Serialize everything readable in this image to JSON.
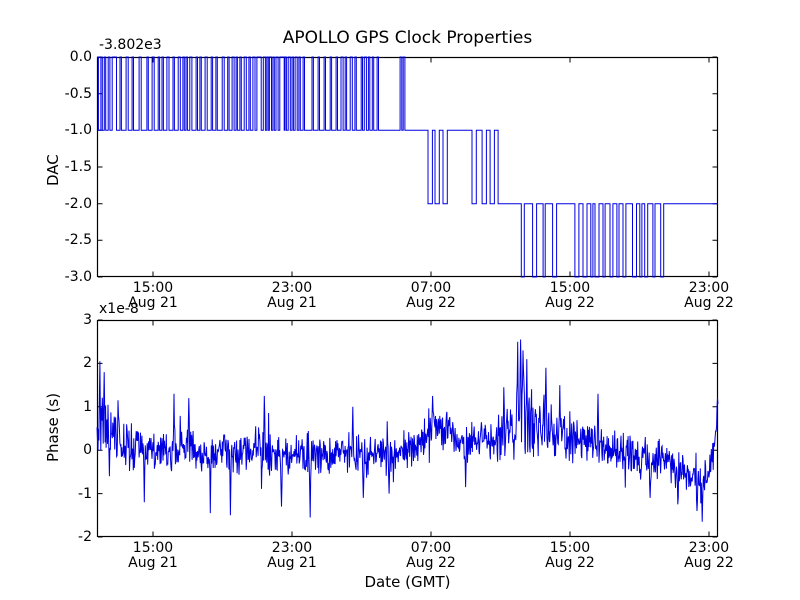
{
  "figure": {
    "title": "APOLLO GPS Clock Properties",
    "xlabel": "Date (GMT)"
  },
  "colors": {
    "line": "#0000e0",
    "axis": "#000000",
    "background": "#ffffff",
    "text": "#000000"
  },
  "chart_data": [
    {
      "type": "line",
      "subplot": "top",
      "ylabel": "DAC",
      "offset_text": "-3.802e3",
      "ylim": [
        -3.0,
        0.0
      ],
      "x_domain_hours": [
        11.777,
        47.518
      ],
      "grid": false,
      "legend": "none",
      "y_ticks": [
        {
          "value": 0.0,
          "label": "0.0"
        },
        {
          "value": -0.5,
          "label": "-0.5"
        },
        {
          "value": -1.0,
          "label": "-1.0"
        },
        {
          "value": -1.5,
          "label": "-1.5"
        },
        {
          "value": -2.0,
          "label": "-2.0"
        },
        {
          "value": -2.5,
          "label": "-2.5"
        },
        {
          "value": -3.0,
          "label": "-3.0"
        }
      ],
      "x_ticks": [
        {
          "hour": 15,
          "time": "15:00",
          "date": "Aug 21"
        },
        {
          "hour": 23,
          "time": "23:00",
          "date": "Aug 21"
        },
        {
          "hour": 31,
          "time": "07:00",
          "date": "Aug 22"
        },
        {
          "hour": 39,
          "time": "15:00",
          "date": "Aug 22"
        },
        {
          "hour": 47,
          "time": "23:00",
          "date": "Aug 22"
        }
      ],
      "step_events": [
        [
          11.78,
          0
        ],
        [
          11.86,
          -1
        ],
        [
          12.0,
          0
        ],
        [
          12.08,
          -1
        ],
        [
          12.2,
          0
        ],
        [
          12.28,
          -1
        ],
        [
          12.42,
          0
        ],
        [
          12.52,
          -1
        ],
        [
          12.65,
          0
        ],
        [
          12.9,
          -1
        ],
        [
          13.1,
          0
        ],
        [
          13.18,
          -1
        ],
        [
          13.45,
          0
        ],
        [
          13.57,
          -1
        ],
        [
          13.8,
          0
        ],
        [
          13.88,
          -1
        ],
        [
          14.2,
          0
        ],
        [
          14.32,
          -1
        ],
        [
          14.65,
          0
        ],
        [
          14.73,
          -1
        ],
        [
          14.95,
          0
        ],
        [
          15.07,
          -1
        ],
        [
          15.3,
          0
        ],
        [
          15.38,
          -1
        ],
        [
          15.52,
          0
        ],
        [
          15.6,
          -1
        ],
        [
          15.8,
          0
        ],
        [
          15.92,
          -1
        ],
        [
          16.15,
          0
        ],
        [
          16.23,
          -1
        ],
        [
          16.45,
          0
        ],
        [
          16.57,
          -1
        ],
        [
          16.72,
          0
        ],
        [
          16.8,
          -1
        ],
        [
          16.9,
          0
        ],
        [
          16.98,
          -1
        ],
        [
          17.12,
          0
        ],
        [
          17.24,
          -1
        ],
        [
          17.48,
          0
        ],
        [
          17.56,
          -1
        ],
        [
          17.7,
          0
        ],
        [
          17.78,
          -1
        ],
        [
          18.0,
          0
        ],
        [
          18.12,
          -1
        ],
        [
          18.35,
          0
        ],
        [
          18.43,
          -1
        ],
        [
          18.62,
          0
        ],
        [
          18.7,
          -1
        ],
        [
          18.98,
          0
        ],
        [
          19.1,
          -1
        ],
        [
          19.3,
          0
        ],
        [
          19.38,
          -1
        ],
        [
          19.55,
          0
        ],
        [
          19.67,
          -1
        ],
        [
          19.78,
          0
        ],
        [
          19.86,
          -1
        ],
        [
          20.0,
          0
        ],
        [
          20.08,
          -1
        ],
        [
          20.25,
          0
        ],
        [
          20.37,
          -1
        ],
        [
          20.52,
          0
        ],
        [
          20.6,
          -1
        ],
        [
          20.75,
          0
        ],
        [
          20.87,
          -1
        ],
        [
          20.98,
          0
        ],
        [
          21.23,
          -1
        ],
        [
          21.35,
          0
        ],
        [
          21.47,
          -1
        ],
        [
          21.55,
          0
        ],
        [
          21.63,
          -1
        ],
        [
          21.7,
          0
        ],
        [
          21.82,
          -1
        ],
        [
          21.9,
          0
        ],
        [
          21.98,
          -1
        ],
        [
          22.08,
          0
        ],
        [
          22.2,
          -1
        ],
        [
          22.3,
          0
        ],
        [
          22.55,
          -1
        ],
        [
          22.6,
          0
        ],
        [
          22.68,
          -1
        ],
        [
          22.78,
          0
        ],
        [
          22.9,
          -1
        ],
        [
          23.0,
          0
        ],
        [
          23.08,
          -1
        ],
        [
          23.18,
          0
        ],
        [
          23.3,
          -1
        ],
        [
          23.4,
          0
        ],
        [
          23.48,
          -1
        ],
        [
          23.64,
          0
        ],
        [
          23.72,
          -1
        ],
        [
          24.15,
          0
        ],
        [
          24.23,
          -1
        ],
        [
          24.5,
          0
        ],
        [
          24.58,
          -1
        ],
        [
          24.85,
          0
        ],
        [
          24.93,
          -1
        ],
        [
          25.2,
          0
        ],
        [
          25.28,
          -1
        ],
        [
          25.54,
          0
        ],
        [
          25.62,
          -1
        ],
        [
          25.82,
          0
        ],
        [
          25.94,
          -1
        ],
        [
          26.06,
          0
        ],
        [
          26.14,
          -1
        ],
        [
          26.35,
          0
        ],
        [
          26.47,
          -1
        ],
        [
          26.62,
          0
        ],
        [
          26.7,
          -1
        ],
        [
          26.98,
          0
        ],
        [
          27.06,
          -1
        ],
        [
          27.16,
          0
        ],
        [
          27.28,
          -1
        ],
        [
          27.4,
          0
        ],
        [
          27.48,
          -1
        ],
        [
          27.62,
          0
        ],
        [
          27.7,
          -1
        ],
        [
          27.9,
          0
        ],
        [
          27.98,
          -1
        ],
        [
          29.22,
          0
        ],
        [
          29.32,
          -1
        ],
        [
          29.4,
          0
        ],
        [
          29.5,
          -1
        ],
        [
          30.83,
          -2
        ],
        [
          31.08,
          -1
        ],
        [
          31.23,
          -2
        ],
        [
          31.48,
          -1
        ],
        [
          31.69,
          -2
        ],
        [
          31.94,
          -1
        ],
        [
          33.36,
          -2
        ],
        [
          33.61,
          -1
        ],
        [
          33.94,
          -2
        ],
        [
          34.19,
          -1
        ],
        [
          34.4,
          -2
        ],
        [
          34.65,
          -1
        ],
        [
          34.86,
          -2
        ],
        [
          36.2,
          -3
        ],
        [
          36.37,
          -2
        ],
        [
          36.85,
          -3
        ],
        [
          37.08,
          -2
        ],
        [
          37.45,
          -3
        ],
        [
          37.57,
          -2
        ],
        [
          38.0,
          -3
        ],
        [
          38.23,
          -2
        ],
        [
          39.28,
          -3
        ],
        [
          39.51,
          -2
        ],
        [
          39.75,
          -3
        ],
        [
          39.98,
          -2
        ],
        [
          40.2,
          -3
        ],
        [
          40.32,
          -2
        ],
        [
          40.44,
          -3
        ],
        [
          40.67,
          -2
        ],
        [
          40.9,
          -3
        ],
        [
          41.02,
          -2
        ],
        [
          41.3,
          -3
        ],
        [
          41.47,
          -2
        ],
        [
          41.7,
          -3
        ],
        [
          41.82,
          -2
        ],
        [
          42.05,
          -3
        ],
        [
          42.22,
          -2
        ],
        [
          42.6,
          -3
        ],
        [
          42.83,
          -2
        ],
        [
          43.02,
          -3
        ],
        [
          43.14,
          -2
        ],
        [
          43.3,
          -3
        ],
        [
          43.47,
          -2
        ],
        [
          43.77,
          -3
        ],
        [
          43.89,
          -2
        ],
        [
          44.22,
          -3
        ],
        [
          44.39,
          -2
        ]
      ]
    },
    {
      "type": "line",
      "subplot": "bottom",
      "ylabel": "Phase (s)",
      "multiplier_text": "x1e-8",
      "xlabel": "Date (GMT)",
      "ylim": [
        -2,
        3
      ],
      "x_domain_hours": [
        11.777,
        47.518
      ],
      "grid": false,
      "legend": "none",
      "y_ticks": [
        {
          "value": 3,
          "label": "3"
        },
        {
          "value": 2,
          "label": "2"
        },
        {
          "value": 1,
          "label": "1"
        },
        {
          "value": 0,
          "label": "0"
        },
        {
          "value": -1,
          "label": "-1"
        },
        {
          "value": -2,
          "label": "-2"
        }
      ],
      "x_ticks": [
        {
          "hour": 15,
          "time": "15:00",
          "date": "Aug 21"
        },
        {
          "hour": 23,
          "time": "23:00",
          "date": "Aug 21"
        },
        {
          "hour": 31,
          "time": "07:00",
          "date": "Aug 22"
        },
        {
          "hour": 39,
          "time": "15:00",
          "date": "Aug 22"
        },
        {
          "hour": 47,
          "time": "23:00",
          "date": "Aug 22"
        }
      ],
      "noise_model": {
        "n_points": 1300,
        "seed": 11,
        "trend": [
          [
            11.78,
            0.55,
            1.1
          ],
          [
            12.1,
            0.45,
            1.0
          ],
          [
            12.6,
            0.35,
            0.8
          ],
          [
            13.2,
            0.15,
            0.65
          ],
          [
            14.0,
            0.05,
            0.55
          ],
          [
            15.0,
            0.0,
            0.5
          ],
          [
            16.0,
            -0.05,
            0.5
          ],
          [
            17.0,
            0.05,
            0.5
          ],
          [
            18.0,
            -0.1,
            0.5
          ],
          [
            19.0,
            -0.05,
            0.45
          ],
          [
            20.0,
            -0.05,
            0.5
          ],
          [
            21.0,
            0.05,
            0.5
          ],
          [
            22.0,
            -0.05,
            0.5
          ],
          [
            23.0,
            -0.1,
            0.5
          ],
          [
            24.0,
            -0.05,
            0.5
          ],
          [
            25.0,
            -0.1,
            0.45
          ],
          [
            26.0,
            -0.05,
            0.45
          ],
          [
            27.0,
            -0.1,
            0.45
          ],
          [
            28.0,
            -0.15,
            0.5
          ],
          [
            29.0,
            -0.1,
            0.5
          ],
          [
            30.0,
            0.05,
            0.5
          ],
          [
            30.7,
            0.35,
            0.55
          ],
          [
            31.2,
            0.6,
            0.6
          ],
          [
            31.8,
            0.5,
            0.55
          ],
          [
            32.5,
            0.3,
            0.55
          ],
          [
            33.2,
            0.15,
            0.55
          ],
          [
            34.0,
            0.2,
            0.5
          ],
          [
            35.0,
            0.3,
            0.55
          ],
          [
            35.8,
            0.5,
            0.8
          ],
          [
            36.1,
            0.9,
            1.2
          ],
          [
            36.6,
            0.75,
            1.0
          ],
          [
            37.2,
            0.55,
            0.85
          ],
          [
            38.0,
            0.4,
            0.7
          ],
          [
            38.8,
            0.35,
            0.6
          ],
          [
            39.5,
            0.25,
            0.55
          ],
          [
            40.2,
            0.15,
            0.5
          ],
          [
            41.0,
            0.05,
            0.5
          ],
          [
            42.0,
            -0.05,
            0.5
          ],
          [
            43.0,
            -0.15,
            0.5
          ],
          [
            44.0,
            -0.2,
            0.5
          ],
          [
            45.0,
            -0.4,
            0.45
          ],
          [
            45.8,
            -0.55,
            0.45
          ],
          [
            46.4,
            -0.75,
            0.4
          ],
          [
            47.0,
            -0.55,
            0.4
          ],
          [
            47.25,
            -0.1,
            0.5
          ],
          [
            47.45,
            0.7,
            0.4
          ],
          [
            47.52,
            1.0,
            0.15
          ]
        ],
        "spikes": [
          [
            11.95,
            2.05
          ],
          [
            12.18,
            1.8
          ],
          [
            12.5,
            -0.6
          ],
          [
            13.0,
            1.15
          ],
          [
            14.5,
            -1.2
          ],
          [
            16.2,
            1.3
          ],
          [
            17.05,
            1.2
          ],
          [
            18.3,
            -1.45
          ],
          [
            19.45,
            -1.5
          ],
          [
            21.4,
            1.25
          ],
          [
            22.4,
            -1.3
          ],
          [
            24.05,
            -1.55
          ],
          [
            26.5,
            1.0
          ],
          [
            27.1,
            -1.1
          ],
          [
            28.6,
            -1.0
          ],
          [
            31.1,
            1.25
          ],
          [
            33.0,
            -0.85
          ],
          [
            35.2,
            1.45
          ],
          [
            36.0,
            2.5
          ],
          [
            36.15,
            2.55
          ],
          [
            36.3,
            2.3
          ],
          [
            36.5,
            2.1
          ],
          [
            37.6,
            1.9
          ],
          [
            38.4,
            1.5
          ],
          [
            40.6,
            1.3
          ],
          [
            43.6,
            -1.1
          ],
          [
            45.2,
            -1.25
          ],
          [
            46.3,
            -1.4
          ],
          [
            46.6,
            -1.65
          ],
          [
            47.5,
            1.2
          ]
        ]
      }
    }
  ]
}
